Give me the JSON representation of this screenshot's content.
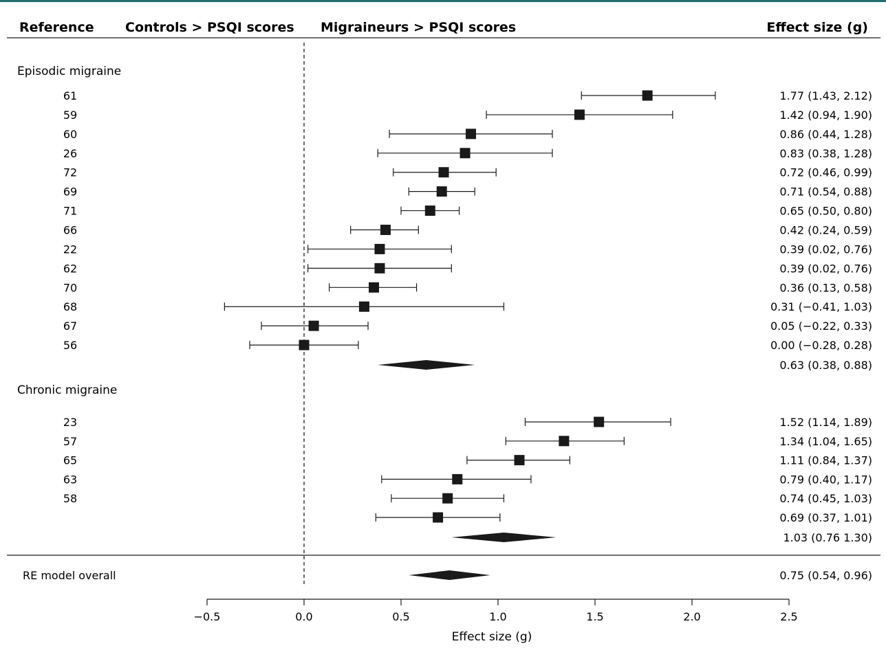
{
  "colors": {
    "top_rule": "#1f6f6a",
    "ink": "#1a1a1a"
  },
  "headers": {
    "reference": "Reference",
    "controls": "Controls > PSQI scores",
    "migraineurs": "Migraineurs > PSQI scores",
    "effect": "Effect size (g)"
  },
  "chart_data": {
    "type": "forest",
    "xlabel": "Effect size (g)",
    "xlim": [
      -0.5,
      2.5
    ],
    "xticks": [
      -0.5,
      0.0,
      0.5,
      1.0,
      1.5,
      2.0,
      2.5
    ],
    "xtick_labels": [
      "−0.5",
      "0.0",
      "0.5",
      "1.0",
      "1.5",
      "2.0",
      "2.5"
    ],
    "reference_line": 0,
    "groups": [
      {
        "name": "Episodic migraine",
        "studies": [
          {
            "ref": "61",
            "g": 1.77,
            "lo": 1.43,
            "hi": 2.12,
            "label": "1.77 (1.43, 2.12)"
          },
          {
            "ref": "59",
            "g": 1.42,
            "lo": 0.94,
            "hi": 1.9,
            "label": "1.42 (0.94, 1.90)"
          },
          {
            "ref": "60",
            "g": 0.86,
            "lo": 0.44,
            "hi": 1.28,
            "label": "0.86 (0.44, 1.28)"
          },
          {
            "ref": "26",
            "g": 0.83,
            "lo": 0.38,
            "hi": 1.28,
            "label": "0.83 (0.38, 1.28)"
          },
          {
            "ref": "72",
            "g": 0.72,
            "lo": 0.46,
            "hi": 0.99,
            "label": "0.72 (0.46, 0.99)"
          },
          {
            "ref": "69",
            "g": 0.71,
            "lo": 0.54,
            "hi": 0.88,
            "label": "0.71 (0.54, 0.88)"
          },
          {
            "ref": "71",
            "g": 0.65,
            "lo": 0.5,
            "hi": 0.8,
            "label": "0.65 (0.50, 0.80)"
          },
          {
            "ref": "66",
            "g": 0.42,
            "lo": 0.24,
            "hi": 0.59,
            "label": "0.42 (0.24, 0.59)"
          },
          {
            "ref": "22",
            "g": 0.39,
            "lo": 0.02,
            "hi": 0.76,
            "label": "0.39 (0.02, 0.76)"
          },
          {
            "ref": "62",
            "g": 0.39,
            "lo": 0.02,
            "hi": 0.76,
            "label": "0.39 (0.02, 0.76)"
          },
          {
            "ref": "70",
            "g": 0.36,
            "lo": 0.13,
            "hi": 0.58,
            "label": "0.36 (0.13, 0.58)"
          },
          {
            "ref": "68",
            "g": 0.31,
            "lo": -0.41,
            "hi": 1.03,
            "label": "0.31 (−0.41, 1.03)"
          },
          {
            "ref": "67",
            "g": 0.05,
            "lo": -0.22,
            "hi": 0.33,
            "label": "0.05 (−0.22, 0.33)"
          },
          {
            "ref": "56",
            "g": 0.0,
            "lo": -0.28,
            "hi": 0.28,
            "label": "0.00 (−0.28, 0.28)"
          }
        ],
        "summary": {
          "g": 0.63,
          "lo": 0.38,
          "hi": 0.88,
          "label": "0.63 (0.38, 0.88)"
        }
      },
      {
        "name": "Chronic migraine",
        "studies": [
          {
            "ref": "23",
            "g": 1.52,
            "lo": 1.14,
            "hi": 1.89,
            "label": "1.52 (1.14, 1.89)"
          },
          {
            "ref": "57",
            "g": 1.34,
            "lo": 1.04,
            "hi": 1.65,
            "label": "1.34 (1.04, 1.65)"
          },
          {
            "ref": "65",
            "g": 1.11,
            "lo": 0.84,
            "hi": 1.37,
            "label": "1.11 (0.84, 1.37)"
          },
          {
            "ref": "63",
            "g": 0.79,
            "lo": 0.4,
            "hi": 1.17,
            "label": "0.79 (0.40, 1.17)"
          },
          {
            "ref": "58",
            "g": 0.74,
            "lo": 0.45,
            "hi": 1.03,
            "label": "0.74 (0.45, 1.03)"
          },
          {
            "ref": "",
            "g": 0.69,
            "lo": 0.37,
            "hi": 1.01,
            "label": "0.69 (0.37, 1.01)"
          }
        ],
        "summary": {
          "g": 1.03,
          "lo": 0.76,
          "hi": 1.3,
          "label": "1.03 (0.76 1.30)"
        }
      }
    ],
    "overall": {
      "name": "RE model overall",
      "g": 0.75,
      "lo": 0.54,
      "hi": 0.96,
      "label": "0.75 (0.54, 0.96)"
    }
  }
}
